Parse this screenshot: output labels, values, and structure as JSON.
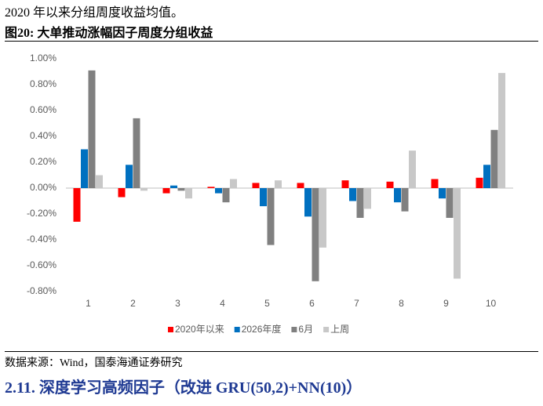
{
  "intro": "2020 年以来分组周度收益均值。",
  "figure_title": "图20:  大单推动涨幅因子周度分组收益",
  "chart_data": {
    "type": "bar",
    "categories": [
      "1",
      "2",
      "3",
      "4",
      "5",
      "6",
      "7",
      "8",
      "9",
      "10"
    ],
    "series": [
      {
        "name": "2020年以来",
        "color": "#ff0000",
        "values": [
          -0.26,
          -0.07,
          -0.04,
          0.01,
          0.04,
          0.04,
          0.06,
          0.05,
          0.07,
          0.08
        ]
      },
      {
        "name": "2026年度",
        "color": "#0070c0",
        "values": [
          0.3,
          0.18,
          0.02,
          -0.04,
          -0.14,
          -0.22,
          -0.1,
          -0.11,
          -0.08,
          0.18
        ]
      },
      {
        "name": "6月",
        "color": "#808080",
        "values": [
          0.91,
          0.54,
          -0.02,
          -0.11,
          -0.44,
          -0.72,
          -0.23,
          -0.18,
          -0.23,
          0.45
        ]
      },
      {
        "name": "上周",
        "color": "#c8c8c8",
        "values": [
          0.1,
          -0.02,
          -0.08,
          0.07,
          0.06,
          -0.46,
          -0.16,
          0.29,
          -0.7,
          0.89
        ]
      }
    ],
    "ylim": [
      -0.8,
      1.0
    ],
    "yticks": [
      {
        "value": 1.0,
        "label": "1.00%"
      },
      {
        "value": 0.8,
        "label": "0.80%"
      },
      {
        "value": 0.6,
        "label": "0.60%"
      },
      {
        "value": 0.4,
        "label": "0.40%"
      },
      {
        "value": 0.2,
        "label": "0.20%"
      },
      {
        "value": 0,
        "label": "0.00%"
      },
      {
        "value": -0.2,
        "label": "-0.20%"
      },
      {
        "value": -0.4,
        "label": "-0.40%"
      },
      {
        "value": -0.6,
        "label": "-0.60%"
      },
      {
        "value": -0.8,
        "label": "-0.80%"
      }
    ],
    "legend": "bottom"
  },
  "source": "数据来源：Wind，国泰海通证券研究",
  "section_heading": "2.11. 深度学习高频因子（改进 GRU(50,2)+NN(10)）"
}
